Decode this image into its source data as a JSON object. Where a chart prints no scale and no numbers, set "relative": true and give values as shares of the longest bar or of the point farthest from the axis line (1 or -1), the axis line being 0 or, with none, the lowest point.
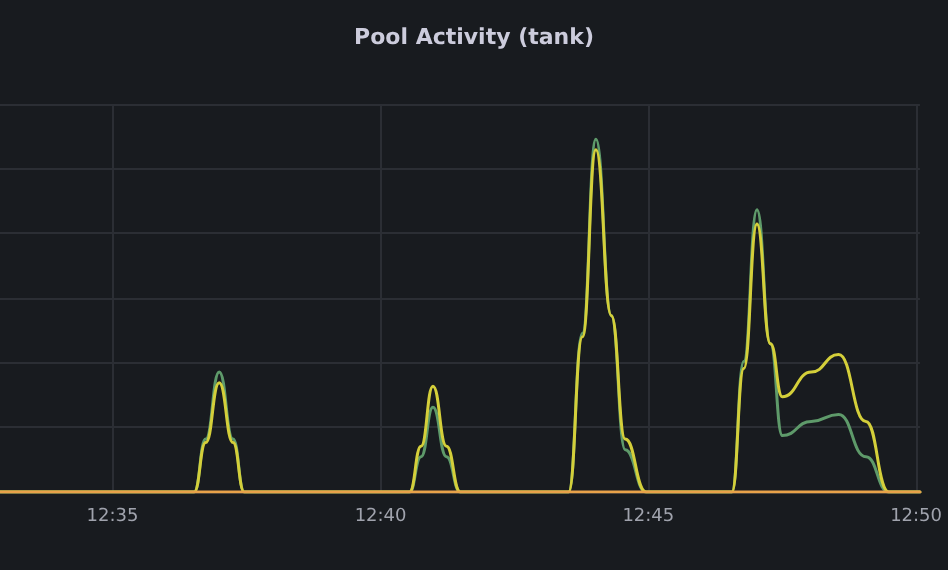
{
  "chart_data": {
    "type": "line",
    "title": "Pool Activity (tank)",
    "relative": true,
    "grid": true,
    "marker": "none",
    "line_style": "solid",
    "xlim": [
      12.5483,
      12.8345
    ],
    "xticks": [
      {
        "value": 12.5833,
        "label": "12:35"
      },
      {
        "value": 12.6667,
        "label": "12:40"
      },
      {
        "value": 12.75,
        "label": "12:45"
      },
      {
        "value": 12.8333,
        "label": "12:50"
      }
    ],
    "series": [
      {
        "color": "#5e9a6a",
        "x": [
          12.5483,
          12.6087,
          12.6123,
          12.6165,
          12.6208,
          12.6243,
          12.6757,
          12.6793,
          12.683,
          12.6872,
          12.6915,
          12.7252,
          12.7295,
          12.7337,
          12.7385,
          12.7428,
          12.7493,
          12.776,
          12.7797,
          12.7838,
          12.788,
          12.7917,
          12.8007,
          12.8092,
          12.8177,
          12.8248,
          12.8345
        ],
        "values": [
          0,
          0,
          0.15,
          0.34,
          0.15,
          0,
          0,
          0.1,
          0.24,
          0.1,
          0,
          0,
          0.45,
          1,
          0.5,
          0.12,
          0,
          0,
          0.37,
          0.8,
          0.42,
          0.16,
          0.2,
          0.22,
          0.1,
          0,
          0
        ]
      },
      {
        "color": "#d4cf3a",
        "x": [
          12.5483,
          12.6087,
          12.6123,
          12.6165,
          12.6208,
          12.6243,
          12.6757,
          12.6793,
          12.683,
          12.6872,
          12.6915,
          12.7252,
          12.7295,
          12.7337,
          12.7385,
          12.7428,
          12.7493,
          12.776,
          12.7797,
          12.7838,
          12.788,
          12.7917,
          12.8007,
          12.8092,
          12.8177,
          12.8248,
          12.8345
        ],
        "values": [
          0,
          0,
          0.14,
          0.31,
          0.14,
          0,
          0,
          0.13,
          0.3,
          0.13,
          0,
          0,
          0.44,
          0.97,
          0.5,
          0.15,
          0,
          0,
          0.35,
          0.76,
          0.42,
          0.27,
          0.34,
          0.39,
          0.2,
          0,
          0
        ]
      },
      {
        "color": "#e8a24a",
        "x": [
          12.5483,
          12.8345
        ],
        "values": [
          0,
          0
        ]
      }
    ]
  }
}
